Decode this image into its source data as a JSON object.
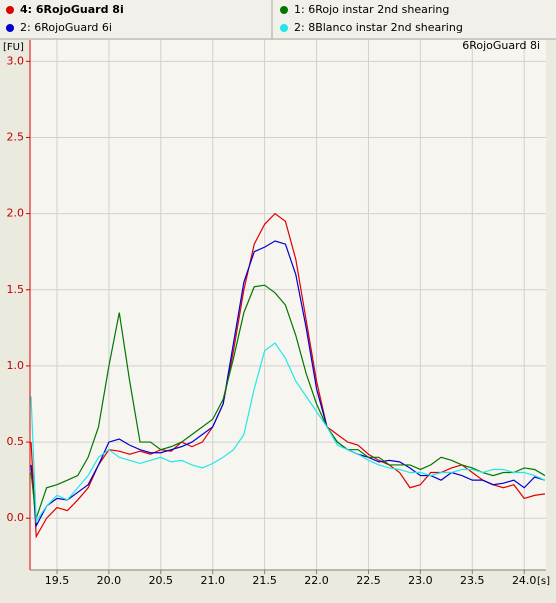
{
  "chart_data": {
    "type": "line",
    "title": "6RojoGuard 8i",
    "xlabel": "[s]",
    "ylabel": "[FU]",
    "xlim": [
      19.24,
      24.21
    ],
    "ylim": [
      -0.34,
      3.14
    ],
    "xticks": [
      {
        "value": 19.5,
        "label": "19.5"
      },
      {
        "value": 20,
        "label": "20.0"
      },
      {
        "value": 20.5,
        "label": "20.5"
      },
      {
        "value": 21,
        "label": "21.0"
      },
      {
        "value": 21.5,
        "label": "21.5"
      },
      {
        "value": 22,
        "label": "22.0"
      },
      {
        "value": 22.5,
        "label": "22.5"
      },
      {
        "value": 23,
        "label": "23.0"
      },
      {
        "value": 23.5,
        "label": "23.5"
      },
      {
        "value": 24,
        "label": "24.0"
      }
    ],
    "yticks": [
      {
        "value": 0,
        "label": "0.0"
      },
      {
        "value": 0.5,
        "label": "0.5"
      },
      {
        "value": 1,
        "label": "1.0"
      },
      {
        "value": 1.5,
        "label": "1.5"
      },
      {
        "value": 2,
        "label": "2.0"
      },
      {
        "value": 2.5,
        "label": "2.5"
      },
      {
        "value": 3,
        "label": "3.0"
      }
    ],
    "grid": true,
    "x": [
      19.25,
      19.3,
      19.4,
      19.5,
      19.6,
      19.7,
      19.8,
      19.9,
      20.0,
      20.1,
      20.2,
      20.3,
      20.4,
      20.5,
      20.6,
      20.7,
      20.8,
      20.9,
      21.0,
      21.1,
      21.2,
      21.3,
      21.4,
      21.5,
      21.6,
      21.7,
      21.8,
      21.9,
      22.0,
      22.1,
      22.2,
      22.3,
      22.4,
      22.5,
      22.6,
      22.7,
      22.8,
      22.9,
      23.0,
      23.1,
      23.2,
      23.3,
      23.4,
      23.5,
      23.6,
      23.7,
      23.8,
      23.9,
      24.0,
      24.1,
      24.2
    ],
    "series": [
      {
        "name": "4: 6RojoGuard 8i",
        "color": "#e00000",
        "values": [
          0.5,
          -0.12,
          0.0,
          0.07,
          0.05,
          0.12,
          0.2,
          0.35,
          0.45,
          0.44,
          0.42,
          0.44,
          0.42,
          0.45,
          0.44,
          0.5,
          0.47,
          0.5,
          0.6,
          0.75,
          1.1,
          1.5,
          1.8,
          1.93,
          2.0,
          1.95,
          1.7,
          1.3,
          0.9,
          0.6,
          0.55,
          0.5,
          0.48,
          0.42,
          0.38,
          0.35,
          0.3,
          0.2,
          0.22,
          0.3,
          0.3,
          0.33,
          0.35,
          0.3,
          0.25,
          0.22,
          0.2,
          0.22,
          0.13,
          0.15,
          0.16
        ]
      },
      {
        "name": "2: 6RojoGuard 6i",
        "color": "#0000d0",
        "values": [
          0.35,
          -0.05,
          0.08,
          0.13,
          0.12,
          0.17,
          0.22,
          0.35,
          0.5,
          0.52,
          0.48,
          0.45,
          0.43,
          0.43,
          0.45,
          0.47,
          0.5,
          0.55,
          0.6,
          0.75,
          1.15,
          1.55,
          1.75,
          1.78,
          1.82,
          1.8,
          1.6,
          1.25,
          0.85,
          0.6,
          0.5,
          0.45,
          0.42,
          0.4,
          0.37,
          0.38,
          0.37,
          0.33,
          0.28,
          0.28,
          0.25,
          0.3,
          0.28,
          0.25,
          0.25,
          0.22,
          0.23,
          0.25,
          0.2,
          0.27,
          0.25
        ]
      },
      {
        "name": "1: 6Rojo instar 2nd shearing",
        "color": "#007800",
        "values": [
          0.3,
          0.0,
          0.2,
          0.22,
          0.25,
          0.28,
          0.4,
          0.6,
          1.0,
          1.35,
          0.9,
          0.5,
          0.5,
          0.45,
          0.47,
          0.5,
          0.55,
          0.6,
          0.65,
          0.78,
          1.05,
          1.35,
          1.52,
          1.53,
          1.48,
          1.4,
          1.2,
          0.95,
          0.75,
          0.6,
          0.5,
          0.45,
          0.45,
          0.4,
          0.4,
          0.35,
          0.35,
          0.35,
          0.32,
          0.35,
          0.4,
          0.38,
          0.35,
          0.33,
          0.3,
          0.28,
          0.3,
          0.3,
          0.33,
          0.32,
          0.28
        ]
      },
      {
        "name": "2: 8Blanco instar 2nd shearing",
        "color": "#20e8e8",
        "values": [
          0.8,
          -0.02,
          0.08,
          0.15,
          0.12,
          0.2,
          0.28,
          0.4,
          0.45,
          0.4,
          0.38,
          0.36,
          0.38,
          0.4,
          0.37,
          0.38,
          0.35,
          0.33,
          0.36,
          0.4,
          0.45,
          0.55,
          0.85,
          1.1,
          1.15,
          1.05,
          0.9,
          0.8,
          0.7,
          0.6,
          0.48,
          0.45,
          0.42,
          0.38,
          0.35,
          0.33,
          0.32,
          0.3,
          0.3,
          0.28,
          0.3,
          0.3,
          0.32,
          0.32,
          0.3,
          0.32,
          0.32,
          0.3,
          0.3,
          0.28,
          0.25
        ]
      }
    ]
  }
}
